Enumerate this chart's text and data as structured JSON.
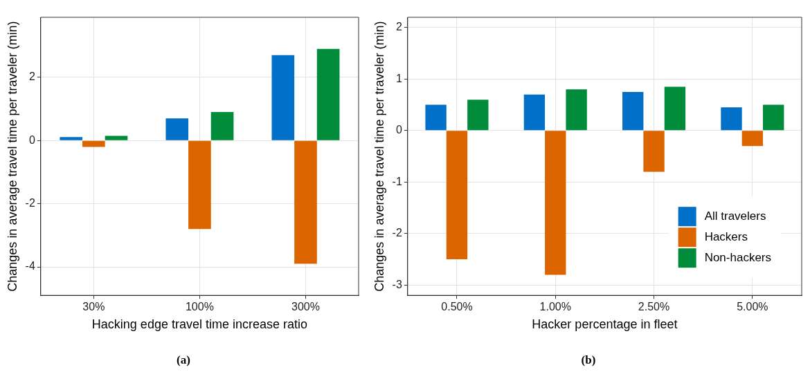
{
  "chart_data": [
    {
      "type": "bar",
      "xlabel": "Hacking edge travel time increase ratio",
      "ylabel": "Changes in average travel time per traveler (min)",
      "categories": [
        "30%",
        "100%",
        "300%"
      ],
      "series": [
        {
          "color": "#0070c9",
          "values": [
            0.11,
            0.7,
            2.7
          ]
        },
        {
          "color": "#dd6500",
          "values": [
            -0.2,
            -2.8,
            -3.9
          ]
        },
        {
          "color": "#008c3a",
          "values": [
            0.15,
            0.9,
            2.9
          ]
        }
      ],
      "ylim": [
        -4.9,
        3.9
      ],
      "yticks": [
        -4,
        -2,
        0,
        2
      ],
      "grid": true,
      "legend": false,
      "annotations": [
        "(a)"
      ]
    },
    {
      "type": "bar",
      "xlabel": "Hacker percentage in fleet",
      "ylabel": "Changes in average travel time per traveler (min)",
      "categories": [
        "0.50%",
        "1.00%",
        "2.50%",
        "5.00%"
      ],
      "series": [
        {
          "name": "All travelers",
          "color": "#0070c9",
          "values": [
            0.5,
            0.7,
            0.75,
            0.45
          ]
        },
        {
          "name": "Hackers",
          "color": "#dd6500",
          "values": [
            -2.5,
            -2.8,
            -0.8,
            -0.3
          ]
        },
        {
          "name": "Non-hackers",
          "color": "#008c3a",
          "values": [
            0.6,
            0.8,
            0.85,
            0.5
          ]
        }
      ],
      "ylim": [
        -3.2,
        2.2
      ],
      "yticks": [
        -3,
        -2,
        -1,
        0,
        1,
        2
      ],
      "grid": true,
      "legend": "bottom right",
      "annotations": [
        "(b)"
      ]
    }
  ]
}
